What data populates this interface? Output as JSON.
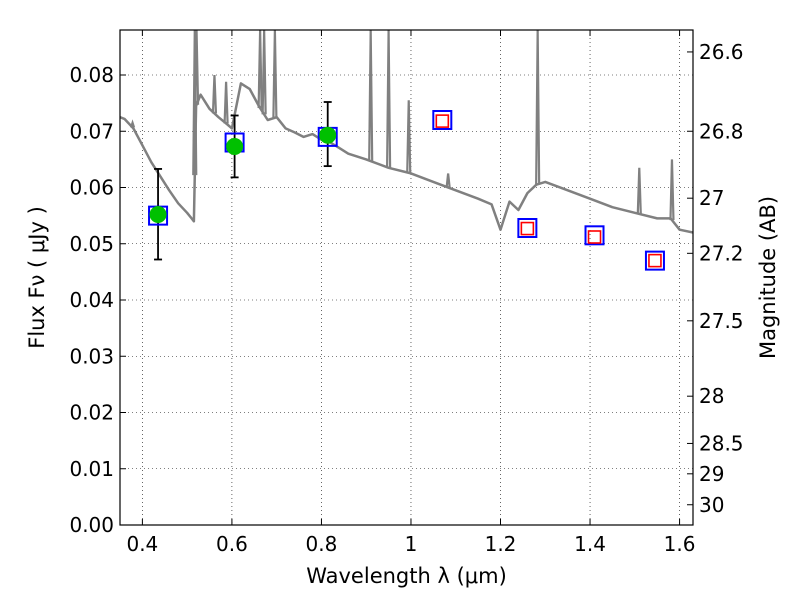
{
  "chart_data": {
    "type": "scatter",
    "xlabel": "Wavelength  λ (μm)",
    "ylabel_left": "Flux  Fν  ( μJy )",
    "ylabel_right": "Magnitude (AB)",
    "xlim": [
      0.35,
      1.63
    ],
    "ylim": [
      0.0,
      0.088
    ],
    "x_ticks": [
      0.4,
      0.6,
      0.8,
      1.0,
      1.2,
      1.4,
      1.6
    ],
    "x_tick_labels": [
      "0.4",
      "0.6",
      "0.8",
      "1",
      "1.2",
      "1.4",
      "1.6"
    ],
    "y_ticks": [
      0.0,
      0.01,
      0.02,
      0.03,
      0.04,
      0.05,
      0.06,
      0.07,
      0.08
    ],
    "y_tick_labels": [
      "0.00",
      "0.01",
      "0.02",
      "0.03",
      "0.04",
      "0.05",
      "0.06",
      "0.07",
      "0.08"
    ],
    "right_ticks": [
      {
        "flux": 0.0841,
        "label": "26.6"
      },
      {
        "flux": 0.07,
        "label": "26.8"
      },
      {
        "flux": 0.0581,
        "label": "27"
      },
      {
        "flux": 0.0483,
        "label": "27.2"
      },
      {
        "flux": 0.0363,
        "label": "27.5"
      },
      {
        "flux": 0.0229,
        "label": "28"
      },
      {
        "flux": 0.0145,
        "label": "28.5"
      },
      {
        "flux": 0.0091,
        "label": "29"
      },
      {
        "flux": 0.0036,
        "label": "30"
      }
    ],
    "grid": true,
    "series": [
      {
        "name": "model spectrum",
        "kind": "line",
        "color": "#808080",
        "x": [
          0.35,
          0.36,
          0.38,
          0.4,
          0.42,
          0.44,
          0.46,
          0.48,
          0.5,
          0.51,
          0.515,
          0.52,
          0.53,
          0.55,
          0.57,
          0.59,
          0.6,
          0.62,
          0.64,
          0.66,
          0.68,
          0.7,
          0.72,
          0.74,
          0.76,
          0.78,
          0.8,
          0.82,
          0.84,
          0.86,
          0.88,
          0.9,
          0.95,
          1.0,
          1.05,
          1.1,
          1.15,
          1.18,
          1.2,
          1.22,
          1.24,
          1.26,
          1.28,
          1.3,
          1.35,
          1.4,
          1.45,
          1.5,
          1.55,
          1.58,
          1.6,
          1.63
        ],
        "y": [
          0.0725,
          0.0722,
          0.0705,
          0.0675,
          0.0645,
          0.062,
          0.0595,
          0.0572,
          0.0555,
          0.0545,
          0.054,
          0.0745,
          0.0765,
          0.074,
          0.0725,
          0.0712,
          0.0705,
          0.0785,
          0.0775,
          0.0745,
          0.072,
          0.0725,
          0.0705,
          0.0698,
          0.069,
          0.0695,
          0.0685,
          0.068,
          0.067,
          0.066,
          0.0655,
          0.065,
          0.0635,
          0.0625,
          0.061,
          0.0595,
          0.058,
          0.057,
          0.0525,
          0.0575,
          0.056,
          0.059,
          0.0605,
          0.061,
          0.0595,
          0.058,
          0.0565,
          0.0555,
          0.0545,
          0.0545,
          0.0525,
          0.052
        ]
      },
      {
        "name": "spectrum emission lines",
        "kind": "spikes",
        "color": "#808080",
        "lines": [
          {
            "x": 0.378,
            "y": 0.0715
          },
          {
            "x": 0.517,
            "y": 0.088
          },
          {
            "x": 0.521,
            "y": 0.088
          },
          {
            "x": 0.561,
            "y": 0.08
          },
          {
            "x": 0.587,
            "y": 0.0788
          },
          {
            "x": 0.663,
            "y": 0.088
          },
          {
            "x": 0.672,
            "y": 0.088
          },
          {
            "x": 0.696,
            "y": 0.088
          },
          {
            "x": 0.91,
            "y": 0.088
          },
          {
            "x": 0.95,
            "y": 0.088
          },
          {
            "x": 0.995,
            "y": 0.0755
          },
          {
            "x": 1.083,
            "y": 0.0625
          },
          {
            "x": 1.283,
            "y": 0.088
          },
          {
            "x": 1.51,
            "y": 0.0635
          },
          {
            "x": 1.583,
            "y": 0.065
          }
        ]
      },
      {
        "name": "observed photometry",
        "kind": "errorbar",
        "color": "#00c000",
        "x": [
          0.435,
          0.606,
          0.814
        ],
        "y": [
          0.0552,
          0.0673,
          0.0693
        ],
        "yerr_low": [
          0.0472,
          0.0618,
          0.0638
        ],
        "yerr_high": [
          0.0633,
          0.0728,
          0.0752
        ]
      },
      {
        "name": "model photometry",
        "kind": "square",
        "color": "#0000ff",
        "x": [
          0.435,
          0.606,
          0.814,
          1.07,
          1.26,
          1.41,
          1.545
        ],
        "y": [
          0.055,
          0.068,
          0.069,
          0.072,
          0.0528,
          0.0515,
          0.047
        ]
      },
      {
        "name": "predicted photometry",
        "kind": "square",
        "color": "#ff0000",
        "x": [
          1.07,
          1.26,
          1.41,
          1.545
        ],
        "y": [
          0.0718,
          0.0527,
          0.0512,
          0.047
        ]
      }
    ]
  }
}
